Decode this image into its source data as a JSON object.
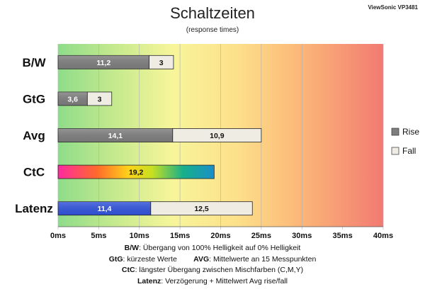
{
  "header": {
    "title": "Schaltzeiten",
    "subtitle": "(response times)",
    "model": "ViewSonic VP3481"
  },
  "legend": {
    "rise_label": "Rise",
    "fall_label": "Fall",
    "rise_color": "#7f7f7f",
    "fall_color": "#efece4"
  },
  "notes": [
    {
      "key": "B/W",
      "text": ":  Übergang von 100% Helligkeit auf 0% Helligkeit"
    },
    {
      "key": "GtG",
      "text": ": kürzeste  Werte",
      "key2": "AVG",
      "text2": ": Mittelwerte  an 15 Messpunkten"
    },
    {
      "key": "CtC",
      "text": ": längster Übergang  zwischen Mischfarben  (C,M,Y)"
    },
    {
      "key": "Latenz",
      "text": ": Verzögerung  + Mittelwert  Avg rise/fall"
    }
  ],
  "chart_data": {
    "type": "bar",
    "orientation": "horizontal",
    "stacked": true,
    "title": "Schaltzeiten",
    "subtitle": "(response times)",
    "xlim": [
      0,
      40
    ],
    "x_ticks": [
      "0ms",
      "5ms",
      "10ms",
      "15ms",
      "20ms",
      "25ms",
      "30ms",
      "35ms",
      "40ms"
    ],
    "x_tick_values": [
      0,
      5,
      10,
      15,
      20,
      25,
      30,
      35,
      40
    ],
    "background": "gradient green (0ms) → yellow → orange → red (40ms)",
    "legend_position": "right",
    "categories": [
      "B/W",
      "GtG",
      "Avg",
      "CtC",
      "Latenz"
    ],
    "series": [
      {
        "name": "Rise",
        "values": [
          11.2,
          3.6,
          14.1,
          null,
          null
        ]
      },
      {
        "name": "Fall",
        "values": [
          3,
          3,
          10.9,
          null,
          12.5
        ]
      }
    ],
    "special_bars": [
      {
        "category": "CtC",
        "value": 19.2,
        "style": "rainbow",
        "label": "19,2"
      },
      {
        "category": "Latenz",
        "segment": "first",
        "value": 11.4,
        "color": "#3355dd",
        "label": "11,4"
      }
    ],
    "data_labels": {
      "B/W": [
        "11,2",
        "3"
      ],
      "GtG": [
        "3,6",
        "3"
      ],
      "Avg": [
        "14,1",
        "10,9"
      ],
      "CtC": [
        "19,2"
      ],
      "Latenz": [
        "11,4",
        "12,5"
      ]
    }
  }
}
